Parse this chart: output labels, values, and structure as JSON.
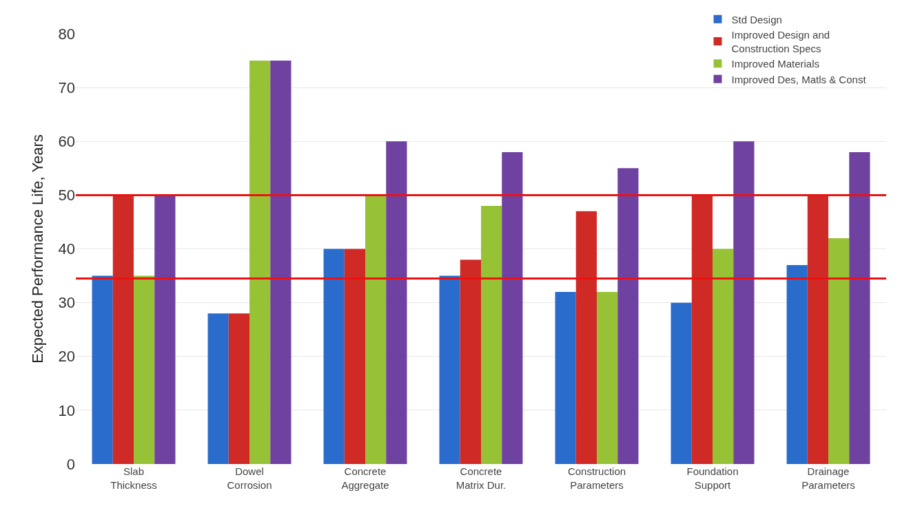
{
  "chart_data": {
    "type": "bar",
    "ylabel": "Expected Performance Life, Years",
    "categories": [
      "Slab\nThickness",
      "Dowel\nCorrosion",
      "Concrete\nAggregate",
      "Concrete\nMatrix Dur.",
      "Construction\nParameters",
      "Foundation\nSupport",
      "Drainage\nParameters"
    ],
    "series": [
      {
        "name": "Std Design",
        "color": "#2a6ccb",
        "values": [
          35,
          28,
          40,
          35,
          32,
          30,
          37
        ]
      },
      {
        "name": "Improved Design and\nConstruction Specs",
        "color": "#d02a27",
        "values": [
          50,
          28,
          40,
          38,
          47,
          50,
          50
        ]
      },
      {
        "name": "Improved Materials",
        "color": "#97c236",
        "values": [
          35,
          75,
          50,
          48,
          32,
          40,
          42
        ]
      },
      {
        "name": "Improved Des, Matls & Const",
        "color": "#6f42a1",
        "values": [
          50,
          75,
          60,
          58,
          55,
          60,
          58
        ]
      }
    ],
    "ylim": [
      0,
      80
    ],
    "yticks": [
      0,
      10,
      20,
      30,
      40,
      50,
      60,
      70,
      80
    ],
    "grid": "y",
    "legend": "top right",
    "ref_lines": [
      {
        "axis": "y",
        "value": 50,
        "color": "#ee1111"
      },
      {
        "axis": "y",
        "value": 34.5,
        "color": "#ee1111"
      }
    ]
  }
}
